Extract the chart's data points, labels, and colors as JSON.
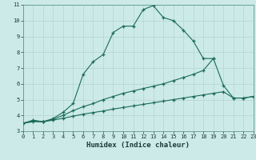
{
  "xlabel": "Humidex (Indice chaleur)",
  "bg_color": "#cceae8",
  "grid_color": "#b8d8d6",
  "line_color": "#1a6b5a",
  "x_min": 0,
  "x_max": 23,
  "y_min": 3,
  "y_max": 11,
  "series": [
    {
      "x": [
        0,
        1,
        2,
        3,
        4,
        5,
        6,
        7,
        8,
        9,
        10,
        11,
        12,
        13,
        14,
        15,
        16,
        17,
        18,
        19
      ],
      "y": [
        3.5,
        3.7,
        3.6,
        3.8,
        4.2,
        4.75,
        6.6,
        7.4,
        7.85,
        9.25,
        9.65,
        9.65,
        10.7,
        10.95,
        10.2,
        10.0,
        9.4,
        8.7,
        7.6,
        7.6
      ]
    },
    {
      "x": [
        0,
        1,
        2,
        3,
        4,
        5,
        6,
        7,
        8,
        9,
        10,
        11,
        12,
        13,
        14,
        15,
        16,
        17,
        18,
        19,
        20,
        21,
        22,
        23
      ],
      "y": [
        3.5,
        3.65,
        3.6,
        3.75,
        4.0,
        4.3,
        4.55,
        4.75,
        5.0,
        5.2,
        5.4,
        5.55,
        5.7,
        5.85,
        6.0,
        6.2,
        6.4,
        6.6,
        6.85,
        7.6,
        5.9,
        5.1,
        5.1,
        5.2
      ]
    },
    {
      "x": [
        0,
        1,
        2,
        3,
        4,
        5,
        6,
        7,
        8,
        9,
        10,
        11,
        12,
        13,
        14,
        15,
        16,
        17,
        18,
        19,
        20,
        21,
        22,
        23
      ],
      "y": [
        3.5,
        3.6,
        3.6,
        3.7,
        3.82,
        3.95,
        4.08,
        4.18,
        4.28,
        4.4,
        4.5,
        4.6,
        4.7,
        4.8,
        4.9,
        5.0,
        5.1,
        5.2,
        5.3,
        5.4,
        5.5,
        5.1,
        5.1,
        5.2
      ]
    }
  ]
}
